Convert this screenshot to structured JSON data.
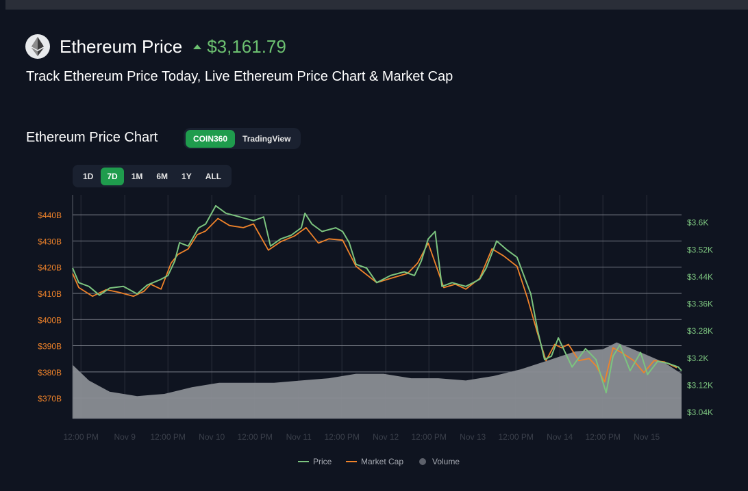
{
  "header": {
    "title": "Ethereum Price",
    "price": "$3,161.79",
    "subtitle": "Track Ethereum Price Today, Live Ethereum Price Chart & Market Cap"
  },
  "chart_section": {
    "title": "Ethereum Price Chart",
    "sources": [
      "COIN360",
      "TradingView"
    ],
    "active_source": "COIN360",
    "ranges": [
      "1D",
      "7D",
      "1M",
      "6M",
      "1Y",
      "ALL"
    ],
    "active_range": "7D"
  },
  "colors": {
    "price": "#7cc47f",
    "market_cap": "#f0832a",
    "volume": "#8a8d94",
    "up": "#6cc070",
    "accent": "#1f9c4d"
  },
  "chart_data": {
    "type": "line",
    "title": "Ethereum Price Chart",
    "x_unit": "hours since start",
    "xlim": [
      0,
      168
    ],
    "x_ticks": [
      {
        "h": 2.3,
        "label": "12:00 PM"
      },
      {
        "h": 14.4,
        "label": "Nov 9"
      },
      {
        "h": 26.3,
        "label": "12:00 PM"
      },
      {
        "h": 38.4,
        "label": "Nov 10"
      },
      {
        "h": 50.3,
        "label": "12:00 PM"
      },
      {
        "h": 62.4,
        "label": "Nov 11"
      },
      {
        "h": 74.3,
        "label": "12:00 PM"
      },
      {
        "h": 86.4,
        "label": "Nov 12"
      },
      {
        "h": 98.3,
        "label": "12:00 PM"
      },
      {
        "h": 110.4,
        "label": "Nov 13"
      },
      {
        "h": 122.3,
        "label": "12:00 PM"
      },
      {
        "h": 134.4,
        "label": "Nov 14"
      },
      {
        "h": 146.3,
        "label": "12:00 PM"
      },
      {
        "h": 158.4,
        "label": "Nov 15"
      }
    ],
    "left_axis": {
      "name": "Market Cap",
      "unit": "$B",
      "ylim": [
        362.2,
        447.6
      ],
      "ticks": [
        440,
        430,
        420,
        410,
        400,
        390,
        380,
        370
      ],
      "tick_labels": [
        "$440B",
        "$430B",
        "$420B",
        "$410B",
        "$400B",
        "$390B",
        "$380B",
        "$370B"
      ]
    },
    "right_axis": {
      "name": "Price",
      "unit": "$K",
      "ylim": [
        3.02,
        3.68
      ],
      "ticks": [
        3.6,
        3.52,
        3.44,
        3.36,
        3.28,
        3.2,
        3.12,
        3.04
      ],
      "tick_labels": [
        "$3.6K",
        "$3.52K",
        "$3.44K",
        "$3.36K",
        "$3.28K",
        "$3.2K",
        "$3.12K",
        "$3.04K"
      ]
    },
    "legend": [
      "Price",
      "Market Cap",
      "Volume"
    ],
    "legend_position": "bottom-center",
    "series": [
      {
        "name": "Price",
        "axis": "right",
        "x": [
          0,
          1.7,
          4.5,
          7.4,
          10.2,
          14.0,
          17.8,
          20.6,
          24.4,
          26.3,
          28.2,
          29.5,
          31.9,
          34.8,
          36.7,
          39.5,
          42.3,
          46.1,
          49.9,
          52.7,
          54.6,
          57.4,
          60.3,
          63.1,
          64.1,
          66.0,
          68.8,
          72.6,
          74.5,
          76.3,
          78.2,
          81.1,
          83.9,
          87.7,
          91.5,
          94.3,
          96.2,
          98.1,
          100.0,
          101.9,
          104.7,
          108.5,
          112.3,
          114.1,
          117.0,
          119.8,
          122.6,
          124.5,
          126.4,
          128.3,
          130.2,
          132.1,
          134.0,
          135.9,
          137.8,
          141.5,
          144.4,
          147.2,
          149.1,
          151.0,
          153.8,
          156.7,
          158.6,
          161.4,
          164.2,
          167.1,
          168
        ],
        "values": [
          3.464,
          3.421,
          3.41,
          3.384,
          3.405,
          3.41,
          3.388,
          3.414,
          3.431,
          3.442,
          3.485,
          3.539,
          3.529,
          3.583,
          3.594,
          3.648,
          3.626,
          3.615,
          3.604,
          3.615,
          3.529,
          3.55,
          3.561,
          3.583,
          3.626,
          3.594,
          3.572,
          3.583,
          3.572,
          3.539,
          3.475,
          3.464,
          3.421,
          3.442,
          3.453,
          3.442,
          3.485,
          3.55,
          3.572,
          3.41,
          3.421,
          3.41,
          3.431,
          3.464,
          3.544,
          3.518,
          3.496,
          3.442,
          3.388,
          3.28,
          3.194,
          3.204,
          3.258,
          3.215,
          3.172,
          3.226,
          3.194,
          3.096,
          3.204,
          3.237,
          3.161,
          3.215,
          3.15,
          3.189,
          3.183,
          3.172,
          3.161
        ]
      },
      {
        "name": "Market Cap",
        "axis": "left",
        "x": [
          0,
          1.7,
          5.5,
          9.3,
          13.0,
          16.8,
          19.7,
          21.5,
          24.4,
          27.2,
          29.1,
          31.9,
          34.4,
          36.7,
          40.1,
          43.3,
          47.1,
          49.9,
          54.0,
          57.4,
          61.2,
          64.4,
          67.8,
          70.7,
          74.5,
          78.2,
          83.9,
          87.7,
          92.4,
          95.2,
          98.1,
          102.4,
          105.6,
          108.5,
          112.3,
          115.7,
          118.9,
          122.6,
          125.5,
          128.3,
          130.6,
          133.0,
          134.9,
          136.8,
          139.7,
          142.5,
          144.4,
          146.8,
          149.1,
          151.9,
          154.8,
          157.6,
          160.4,
          163.3,
          166.7
        ],
        "values": [
          417.6,
          412.2,
          408.9,
          411.4,
          410.3,
          408.9,
          410.8,
          413.5,
          411.6,
          421.6,
          424.9,
          427.0,
          432.4,
          433.8,
          438.6,
          435.9,
          435.1,
          436.5,
          426.5,
          429.7,
          431.9,
          435.1,
          429.2,
          430.8,
          430.3,
          420.3,
          414.1,
          415.7,
          417.6,
          421.6,
          429.2,
          412.2,
          413.5,
          411.6,
          415.7,
          427.0,
          424.3,
          420.3,
          408.1,
          394.6,
          384.3,
          390.5,
          389.2,
          390.5,
          384.3,
          385.1,
          382.4,
          376.2,
          389.2,
          387.0,
          384.3,
          379.7,
          384.3,
          383.8,
          381.6
        ]
      },
      {
        "name": "Volume",
        "axis": "hidden",
        "x": [
          0,
          4.5,
          10.2,
          17.8,
          25.3,
          32.9,
          40.4,
          48.0,
          55.6,
          63.1,
          70.7,
          78.2,
          85.8,
          93.4,
          100.9,
          108.5,
          116.1,
          123.6,
          131.2,
          138.7,
          146.3,
          150.1,
          157.6,
          163.3,
          168
        ],
        "values": [
          24,
          17,
          12,
          10,
          11,
          14,
          16,
          16,
          16,
          17,
          18,
          20,
          20,
          18,
          18,
          17,
          19,
          22,
          26,
          30,
          31,
          34,
          29,
          25,
          20
        ]
      }
    ]
  }
}
